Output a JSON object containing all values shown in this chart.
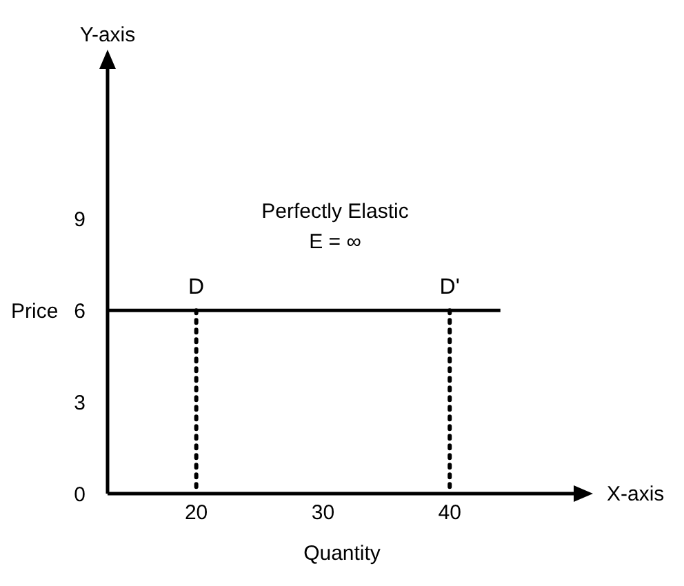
{
  "chart_data": {
    "type": "line",
    "xlabel": "Quantity",
    "ylabel": "Price",
    "xlim": [
      13,
      50
    ],
    "xticks": [
      20,
      30,
      40
    ],
    "ylim": [
      0,
      14
    ],
    "yticks": [
      0,
      3,
      6,
      9
    ],
    "grid": false,
    "legend": false,
    "marker": "none",
    "series": [
      {
        "color": "#000000",
        "x": [
          13,
          44
        ],
        "values": [
          6,
          6
        ],
        "line_style": "solid"
      },
      {
        "color": "#000000",
        "x": [
          20,
          20
        ],
        "values": [
          6,
          0
        ],
        "line_style": "dotted"
      },
      {
        "color": "#000000",
        "x": [
          40,
          40
        ],
        "values": [
          6,
          0
        ],
        "line_style": "dotted"
      }
    ],
    "annotations": [
      "Perfectly Elastic",
      "E = ∞",
      {
        "text": "D",
        "x": 20,
        "y": 6
      },
      {
        "text": "D'",
        "x": 40,
        "y": 6
      },
      "Y-axis",
      "X-axis"
    ]
  }
}
